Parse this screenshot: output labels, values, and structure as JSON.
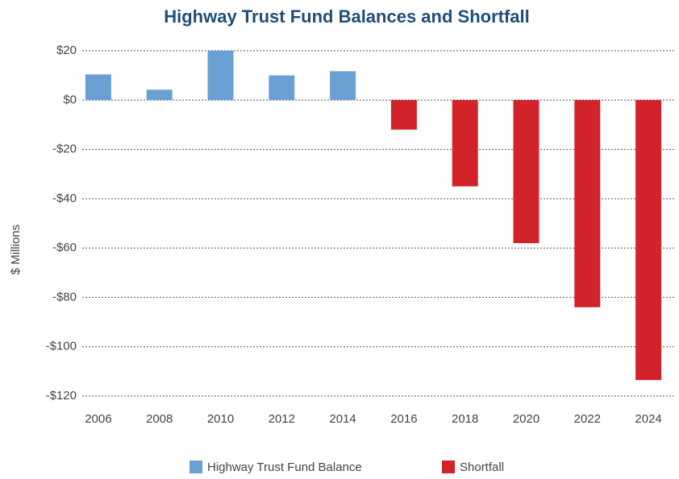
{
  "chart_data": {
    "type": "bar",
    "title": "Highway Trust Fund Balances and Shortfall",
    "y_label": "$ Millions",
    "categories": [
      "2006",
      "2008",
      "2010",
      "2012",
      "2014",
      "2016",
      "2018",
      "2020",
      "2022",
      "2024"
    ],
    "series": [
      {
        "name": "Highway Trust Fund Balance",
        "color": "#6a9fd4",
        "values": [
          10.4,
          4.2,
          20,
          10,
          11.7,
          null,
          null,
          null,
          null,
          null
        ]
      },
      {
        "name": "Shortfall",
        "color": "#d2232a",
        "values": [
          null,
          null,
          null,
          null,
          null,
          -12,
          -35,
          -58,
          -84,
          -113.5
        ]
      }
    ],
    "ylim": [
      -120,
      20
    ],
    "yticks": [
      {
        "value": 20,
        "label": "$20"
      },
      {
        "value": 0,
        "label": "$0"
      },
      {
        "value": -20,
        "label": "-$20"
      },
      {
        "value": -40,
        "label": "-$40"
      },
      {
        "value": -60,
        "label": "-$60"
      },
      {
        "value": -80,
        "label": "-$80"
      },
      {
        "value": -100,
        "label": "-$100"
      },
      {
        "value": -120,
        "label": "-$120"
      }
    ],
    "grid": true,
    "legend": "bottom"
  }
}
